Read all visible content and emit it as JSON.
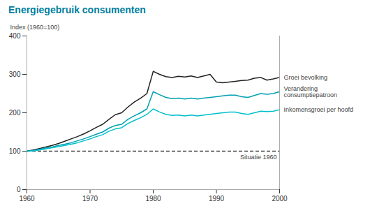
{
  "chart_data": {
    "type": "line",
    "title": "Energiegebruik consumenten",
    "ylabel": "Index (1960=100)",
    "x": [
      1960,
      1961,
      1962,
      1963,
      1964,
      1965,
      1966,
      1967,
      1968,
      1969,
      1970,
      1971,
      1972,
      1973,
      1974,
      1975,
      1976,
      1977,
      1978,
      1979,
      1980,
      1981,
      1982,
      1983,
      1984,
      1985,
      1986,
      1987,
      1988,
      1989,
      1990,
      1991,
      1992,
      1993,
      1994,
      1995,
      1996,
      1997,
      1998,
      1999,
      2000
    ],
    "series": [
      {
        "name": "Groei bevolking",
        "color": "#222222",
        "values": [
          100,
          103,
          107,
          111,
          115,
          120,
          126,
          132,
          138,
          145,
          153,
          162,
          170,
          183,
          195,
          200,
          215,
          228,
          238,
          250,
          308,
          300,
          294,
          292,
          295,
          293,
          296,
          292,
          296,
          300,
          280,
          278,
          280,
          282,
          284,
          285,
          290,
          292,
          285,
          288,
          292
        ]
      },
      {
        "name": "Verandering\nconsumptiepatroon",
        "color": "#00a0b0",
        "values": [
          100,
          102,
          105,
          108,
          111,
          115,
          118,
          122,
          127,
          132,
          138,
          144,
          150,
          160,
          167,
          170,
          183,
          192,
          200,
          210,
          255,
          247,
          240,
          237,
          238,
          236,
          238,
          236,
          238,
          240,
          242,
          244,
          246,
          246,
          242,
          240,
          245,
          250,
          248,
          250,
          255
        ]
      },
      {
        "name": "Inkomensgroei per hoofd",
        "color": "#00c0cc",
        "values": [
          100,
          101,
          103,
          106,
          109,
          112,
          115,
          118,
          122,
          127,
          132,
          138,
          143,
          152,
          158,
          161,
          172,
          180,
          187,
          196,
          210,
          202,
          196,
          193,
          194,
          192,
          194,
          192,
          194,
          196,
          198,
          200,
          202,
          202,
          198,
          196,
          200,
          204,
          203,
          204,
          208
        ]
      }
    ],
    "xlim": [
      1960,
      2000
    ],
    "ylim": [
      0,
      400
    ],
    "xticks": [
      1960,
      1970,
      1980,
      1990,
      2000
    ],
    "yticks": [
      0,
      100,
      200,
      300,
      400
    ],
    "reference_lines": [
      {
        "y": 100,
        "label": "Situatie 1960",
        "line_style": "dashed"
      }
    ],
    "grid": false
  }
}
